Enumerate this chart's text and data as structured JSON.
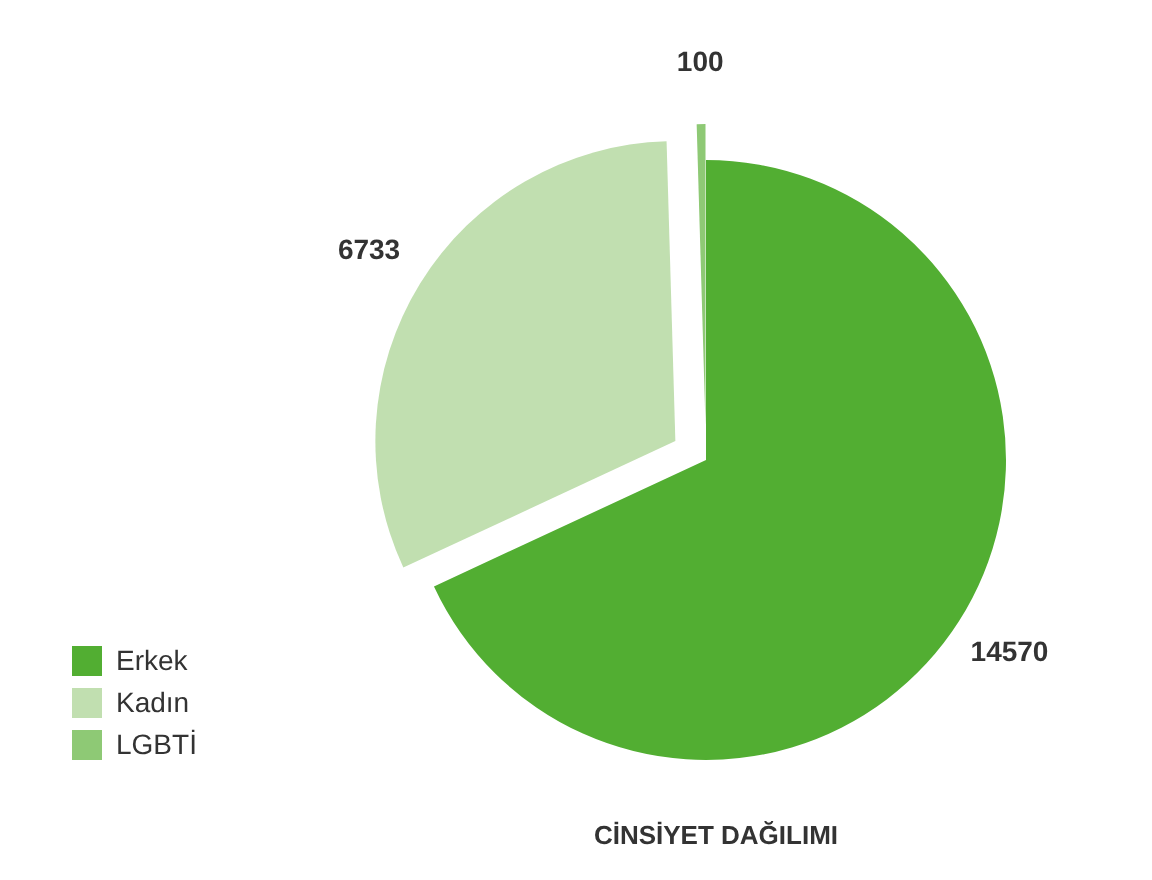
{
  "chart_data": {
    "type": "pie",
    "title": "CİNSİYET DAĞILIMI",
    "categories": [
      "Erkek",
      "Kadın",
      "LGBTİ"
    ],
    "values": [
      14570,
      6733,
      100
    ],
    "colors": [
      "#52ae32",
      "#c1dfb0",
      "#8ec975"
    ],
    "data_labels": true,
    "legend": "bottom left"
  }
}
